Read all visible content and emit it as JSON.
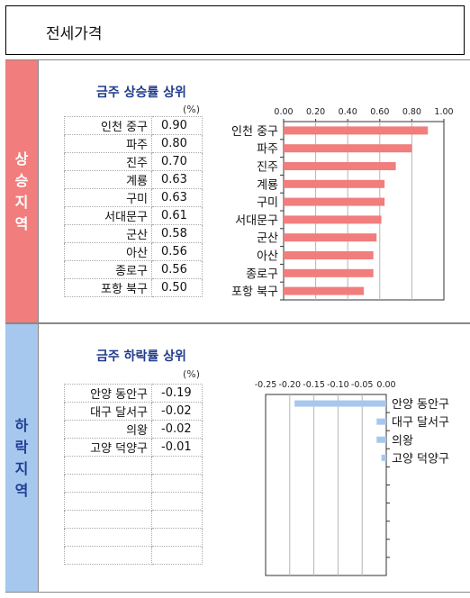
{
  "page": {
    "title": "전세가격"
  },
  "sections": {
    "up": {
      "side_label": [
        "상",
        "승",
        "지",
        "역"
      ],
      "title": "금주 상승률 상위",
      "unit": "(%)"
    },
    "down": {
      "side_label": [
        "하",
        "락",
        "지",
        "역"
      ],
      "title": "금주 하락률 상위",
      "unit": "(%)"
    }
  },
  "rise_table": [
    {
      "name": "인천 중구",
      "value": "0.90"
    },
    {
      "name": "파주",
      "value": "0.80"
    },
    {
      "name": "진주",
      "value": "0.70"
    },
    {
      "name": "계룡",
      "value": "0.63"
    },
    {
      "name": "구미",
      "value": "0.63"
    },
    {
      "name": "서대문구",
      "value": "0.61"
    },
    {
      "name": "군산",
      "value": "0.58"
    },
    {
      "name": "아산",
      "value": "0.56"
    },
    {
      "name": "종로구",
      "value": "0.56"
    },
    {
      "name": "포항 북구",
      "value": "0.50"
    }
  ],
  "fall_table": [
    {
      "name": "안양 동안구",
      "value": "-0.19"
    },
    {
      "name": "대구 달서구",
      "value": "-0.02"
    },
    {
      "name": "의왕",
      "value": "-0.02"
    },
    {
      "name": "고양 덕양구",
      "value": "-0.01"
    },
    {
      "name": "",
      "value": ""
    },
    {
      "name": "",
      "value": ""
    },
    {
      "name": "",
      "value": ""
    },
    {
      "name": "",
      "value": ""
    },
    {
      "name": "",
      "value": ""
    },
    {
      "name": "",
      "value": ""
    }
  ],
  "chart_data": [
    {
      "type": "bar",
      "orientation": "horizontal",
      "title": "금주 상승률 상위",
      "categories": [
        "인천 중구",
        "파주",
        "진주",
        "계룡",
        "구미",
        "서대문구",
        "군산",
        "아산",
        "종로구",
        "포항 북구"
      ],
      "values": [
        0.9,
        0.8,
        0.7,
        0.63,
        0.63,
        0.61,
        0.58,
        0.56,
        0.56,
        0.5
      ],
      "xlim": [
        0,
        1.0
      ],
      "xticks": [
        "0.00",
        "0.20",
        "0.40",
        "0.60",
        "0.80",
        "1.00"
      ],
      "axis_position": "top",
      "grid": true,
      "color": "#f27d7d"
    },
    {
      "type": "bar",
      "orientation": "horizontal",
      "title": "금주 하락률 상위",
      "categories": [
        "안양 동안구",
        "대구 달서구",
        "의왕",
        "고양 덕양구"
      ],
      "values": [
        -0.19,
        -0.02,
        -0.02,
        -0.01
      ],
      "xlim": [
        -0.25,
        0.0
      ],
      "xticks": [
        "-0.25",
        "-0.20",
        "-0.15",
        "-0.10",
        "-0.05",
        "0.00"
      ],
      "axis_position": "top",
      "grid": true,
      "color": "#a6c8ee"
    }
  ]
}
